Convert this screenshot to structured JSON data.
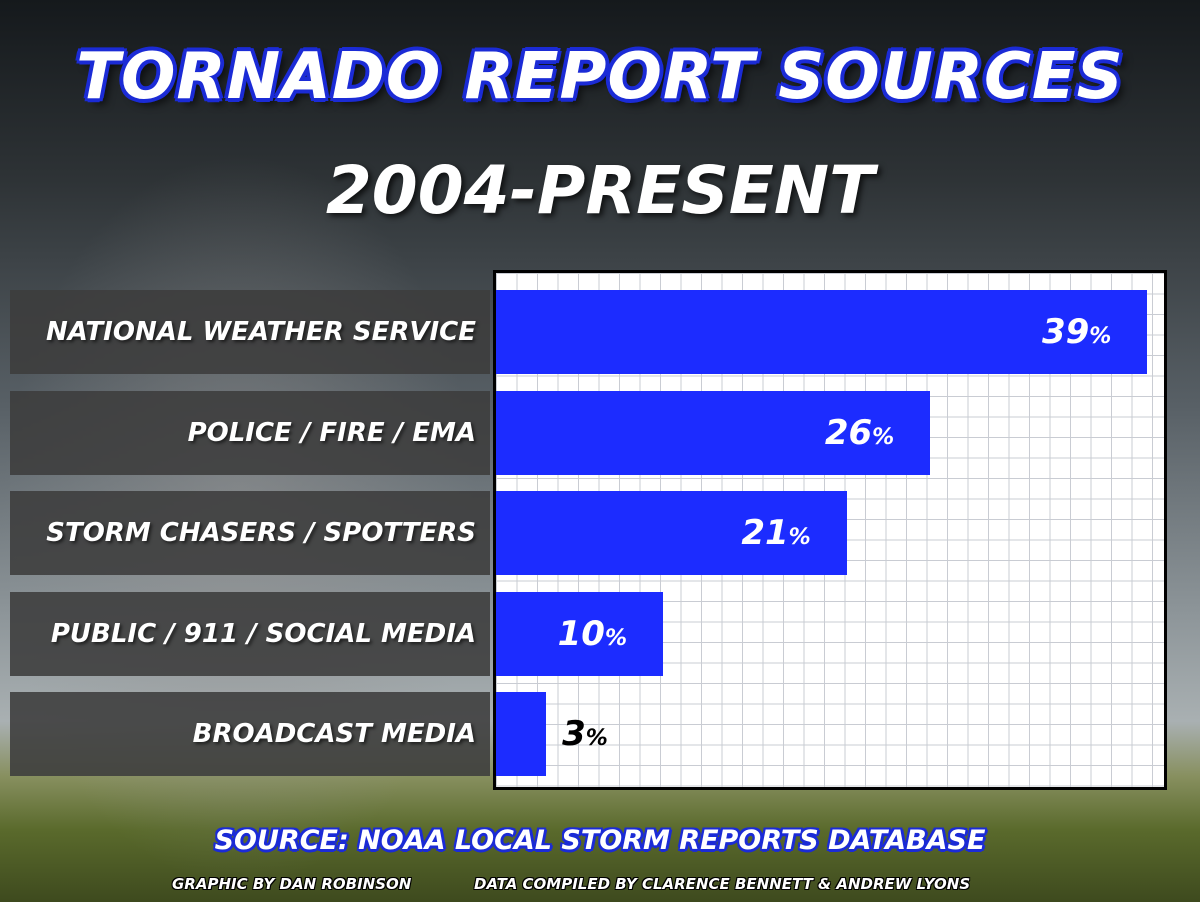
{
  "title": "TORNADO REPORT SOURCES",
  "subtitle": "2004-PRESENT",
  "source": "SOURCE: NOAA LOCAL STORM REPORTS DATABASE",
  "credits": {
    "graphic": "GRAPHIC BY DAN ROBINSON",
    "data": "DATA COMPILED BY CLARENCE BENNETT & ANDREW LYONS"
  },
  "colors": {
    "bar": "#1c2cff",
    "title_outline": "#1b2bd6"
  },
  "chart_data": {
    "type": "bar",
    "orientation": "horizontal",
    "title": "TORNADO REPORT SOURCES",
    "subtitle": "2004-PRESENT",
    "categories": [
      "NATIONAL WEATHER SERVICE",
      "POLICE / FIRE / EMA",
      "STORM CHASERS / SPOTTERS",
      "PUBLIC / 911 / SOCIAL MEDIA",
      "BROADCAST MEDIA"
    ],
    "values": [
      39,
      26,
      21,
      10,
      3
    ],
    "value_labels": [
      "39",
      "26",
      "21",
      "10",
      "3"
    ],
    "unit_suffix": "%",
    "xlim": [
      0,
      40
    ],
    "grid": true,
    "xlabel": "",
    "ylabel": ""
  }
}
